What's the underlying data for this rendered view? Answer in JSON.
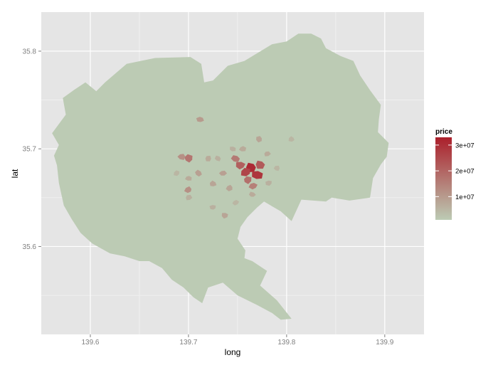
{
  "chart_data": {
    "type": "heatmap",
    "title": "",
    "xlabel": "long",
    "ylabel": "lat",
    "xlim": [
      139.55,
      139.94
    ],
    "ylim": [
      35.51,
      35.84
    ],
    "x_ticks": [
      139.6,
      139.7,
      139.8,
      139.9
    ],
    "x_tick_labels": [
      "139.6",
      "139.7",
      "139.8",
      "139.9"
    ],
    "y_ticks": [
      35.6,
      35.7,
      35.8
    ],
    "y_tick_labels": [
      "35.6",
      "35.7",
      "35.8"
    ],
    "grid": true,
    "legend": {
      "title": "price",
      "position": "right",
      "breaks": [
        10000000,
        20000000,
        30000000
      ],
      "break_labels": [
        "1e+07",
        "2e+07",
        "3e+07"
      ],
      "range": [
        1000000,
        33000000
      ],
      "colors": {
        "low": "#bccbb4",
        "high": "#ab1f2b"
      }
    },
    "colors": {
      "panel_background": "#e5e5e5",
      "grid_major": "#ffffff",
      "grid_minor": "#f2f2f2",
      "base_fill": "#bccbb4"
    },
    "region_outline": [
      [
        139.563,
        35.693
      ],
      [
        139.568,
        35.704
      ],
      [
        139.561,
        35.716
      ],
      [
        139.575,
        35.735
      ],
      [
        139.572,
        35.752
      ],
      [
        139.583,
        35.76
      ],
      [
        139.595,
        35.768
      ],
      [
        139.606,
        35.759
      ],
      [
        139.615,
        35.768
      ],
      [
        139.637,
        35.787
      ],
      [
        139.666,
        35.793
      ],
      [
        139.702,
        35.794
      ],
      [
        139.713,
        35.787
      ],
      [
        139.716,
        35.768
      ],
      [
        139.725,
        35.77
      ],
      [
        139.74,
        35.785
      ],
      [
        139.757,
        35.79
      ],
      [
        139.785,
        35.807
      ],
      [
        139.8,
        35.81
      ],
      [
        139.812,
        35.818
      ],
      [
        139.825,
        35.818
      ],
      [
        139.835,
        35.813
      ],
      [
        139.84,
        35.803
      ],
      [
        139.855,
        35.795
      ],
      [
        139.868,
        35.79
      ],
      [
        139.875,
        35.775
      ],
      [
        139.885,
        35.76
      ],
      [
        139.896,
        35.745
      ],
      [
        139.894,
        35.73
      ],
      [
        139.893,
        35.717
      ],
      [
        139.904,
        35.706
      ],
      [
        139.902,
        35.692
      ],
      [
        139.896,
        35.684
      ],
      [
        139.888,
        35.67
      ],
      [
        139.885,
        35.65
      ],
      [
        139.864,
        35.647
      ],
      [
        139.846,
        35.65
      ],
      [
        139.84,
        35.646
      ],
      [
        139.815,
        35.648
      ],
      [
        139.805,
        35.626
      ],
      [
        139.794,
        35.636
      ],
      [
        139.777,
        35.646
      ],
      [
        139.77,
        35.64
      ],
      [
        139.76,
        35.63
      ],
      [
        139.753,
        35.62
      ],
      [
        139.75,
        35.608
      ],
      [
        139.758,
        35.596
      ],
      [
        139.757,
        35.588
      ],
      [
        139.765,
        35.585
      ],
      [
        139.78,
        35.575
      ],
      [
        139.773,
        35.56
      ],
      [
        139.79,
        35.545
      ],
      [
        139.805,
        35.526
      ],
      [
        139.794,
        35.525
      ],
      [
        139.785,
        35.532
      ],
      [
        139.77,
        35.54
      ],
      [
        139.75,
        35.55
      ],
      [
        139.735,
        35.563
      ],
      [
        139.72,
        35.558
      ],
      [
        139.714,
        35.542
      ],
      [
        139.705,
        35.548
      ],
      [
        139.695,
        35.558
      ],
      [
        139.683,
        35.566
      ],
      [
        139.673,
        35.578
      ],
      [
        139.66,
        35.585
      ],
      [
        139.65,
        35.585
      ],
      [
        139.635,
        35.59
      ],
      [
        139.62,
        35.593
      ],
      [
        139.602,
        35.603
      ],
      [
        139.59,
        35.614
      ],
      [
        139.581,
        35.628
      ],
      [
        139.573,
        35.642
      ],
      [
        139.568,
        35.665
      ],
      [
        139.566,
        35.683
      ]
    ],
    "cells": [
      {
        "long": 139.764,
        "lat": 35.681,
        "price": 31000000
      },
      {
        "long": 139.77,
        "lat": 35.673,
        "price": 29000000
      },
      {
        "long": 139.758,
        "lat": 35.676,
        "price": 26000000
      },
      {
        "long": 139.773,
        "lat": 35.684,
        "price": 22000000
      },
      {
        "long": 139.753,
        "lat": 35.683,
        "price": 21000000
      },
      {
        "long": 139.76,
        "lat": 35.668,
        "price": 18000000
      },
      {
        "long": 139.748,
        "lat": 35.69,
        "price": 16000000
      },
      {
        "long": 139.766,
        "lat": 35.662,
        "price": 15000000
      },
      {
        "long": 139.7,
        "lat": 35.69,
        "price": 17000000
      },
      {
        "long": 139.693,
        "lat": 35.692,
        "price": 12000000
      },
      {
        "long": 139.7,
        "lat": 35.658,
        "price": 12000000
      },
      {
        "long": 139.71,
        "lat": 35.675,
        "price": 9000000
      },
      {
        "long": 139.735,
        "lat": 35.675,
        "price": 9000000
      },
      {
        "long": 139.742,
        "lat": 35.66,
        "price": 8000000
      },
      {
        "long": 139.725,
        "lat": 35.664,
        "price": 8000000
      },
      {
        "long": 139.78,
        "lat": 35.695,
        "price": 7000000
      },
      {
        "long": 139.772,
        "lat": 35.71,
        "price": 8000000
      },
      {
        "long": 139.712,
        "lat": 35.73,
        "price": 10000000
      },
      {
        "long": 139.7,
        "lat": 35.65,
        "price": 6000000
      },
      {
        "long": 139.737,
        "lat": 35.632,
        "price": 8000000
      },
      {
        "long": 139.725,
        "lat": 35.64,
        "price": 6000000
      },
      {
        "long": 139.72,
        "lat": 35.69,
        "price": 7000000
      },
      {
        "long": 139.745,
        "lat": 35.7,
        "price": 6000000
      },
      {
        "long": 139.782,
        "lat": 35.665,
        "price": 6000000
      },
      {
        "long": 139.79,
        "lat": 35.68,
        "price": 5000000
      },
      {
        "long": 139.7,
        "lat": 35.67,
        "price": 7000000
      },
      {
        "long": 139.688,
        "lat": 35.675,
        "price": 5000000
      },
      {
        "long": 139.73,
        "lat": 35.69,
        "price": 6000000
      },
      {
        "long": 139.755,
        "lat": 35.7,
        "price": 7000000
      },
      {
        "long": 139.805,
        "lat": 35.71,
        "price": 5000000
      },
      {
        "long": 139.765,
        "lat": 35.653,
        "price": 7000000
      },
      {
        "long": 139.748,
        "lat": 35.645,
        "price": 5000000
      }
    ]
  }
}
